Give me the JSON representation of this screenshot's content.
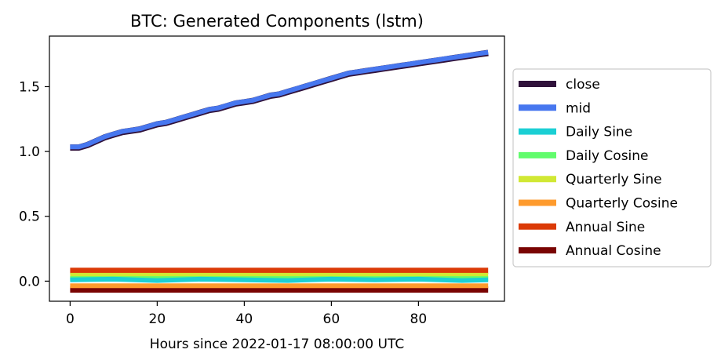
{
  "chart_data": {
    "type": "line",
    "title": "BTC: Generated Components (lstm)",
    "xlabel": "Hours since 2022-01-17 08:00:00 UTC",
    "ylabel": "",
    "xlim": [
      -4.75,
      99.75
    ],
    "ylim": [
      -0.155,
      1.89
    ],
    "xticks": [
      0,
      20,
      40,
      60,
      80
    ],
    "xtick_labels": [
      "0",
      "20",
      "40",
      "60",
      "80"
    ],
    "yticks": [
      0.0,
      0.5,
      1.0,
      1.5
    ],
    "ytick_labels": [
      "0.0",
      "0.5",
      "1.0",
      "1.5"
    ],
    "grid": false,
    "legend_position": "outside-right",
    "series": [
      {
        "name": "close",
        "color": "#30123b",
        "x": [
          0,
          2,
          4,
          6,
          8,
          10,
          12,
          14,
          16,
          18,
          20,
          22,
          24,
          26,
          28,
          30,
          32,
          34,
          36,
          38,
          40,
          42,
          44,
          46,
          48,
          50,
          52,
          54,
          56,
          58,
          60,
          62,
          64,
          66,
          68,
          70,
          72,
          74,
          76,
          78,
          80,
          82,
          84,
          86,
          88,
          90,
          92,
          94,
          96
        ],
        "values": [
          1.03,
          1.03,
          1.05,
          1.08,
          1.11,
          1.13,
          1.15,
          1.16,
          1.17,
          1.19,
          1.21,
          1.22,
          1.24,
          1.26,
          1.28,
          1.3,
          1.32,
          1.33,
          1.35,
          1.37,
          1.38,
          1.39,
          1.41,
          1.43,
          1.44,
          1.46,
          1.48,
          1.5,
          1.52,
          1.54,
          1.56,
          1.58,
          1.6,
          1.61,
          1.62,
          1.63,
          1.64,
          1.65,
          1.66,
          1.67,
          1.68,
          1.69,
          1.7,
          1.71,
          1.72,
          1.73,
          1.74,
          1.75,
          1.76
        ]
      },
      {
        "name": "mid",
        "color": "#4777ef",
        "x": [
          0,
          2,
          4,
          6,
          8,
          10,
          12,
          14,
          16,
          18,
          20,
          22,
          24,
          26,
          28,
          30,
          32,
          34,
          36,
          38,
          40,
          42,
          44,
          46,
          48,
          50,
          52,
          54,
          56,
          58,
          60,
          62,
          64,
          66,
          68,
          70,
          72,
          74,
          76,
          78,
          80,
          82,
          84,
          86,
          88,
          90,
          92,
          94,
          96
        ],
        "values": [
          1.035,
          1.035,
          1.055,
          1.085,
          1.115,
          1.135,
          1.155,
          1.165,
          1.175,
          1.195,
          1.215,
          1.225,
          1.245,
          1.265,
          1.285,
          1.305,
          1.325,
          1.335,
          1.355,
          1.375,
          1.385,
          1.395,
          1.415,
          1.435,
          1.445,
          1.465,
          1.485,
          1.505,
          1.525,
          1.545,
          1.565,
          1.585,
          1.605,
          1.615,
          1.625,
          1.635,
          1.645,
          1.655,
          1.665,
          1.675,
          1.685,
          1.695,
          1.705,
          1.715,
          1.725,
          1.735,
          1.745,
          1.755,
          1.765
        ]
      },
      {
        "name": "Daily Sine",
        "color": "#1bcfd4",
        "x": [
          0,
          10,
          20,
          30,
          40,
          50,
          60,
          70,
          80,
          90,
          96
        ],
        "values": [
          0.01,
          0.015,
          0.005,
          0.015,
          0.01,
          0.005,
          0.015,
          0.01,
          0.015,
          0.005,
          0.01
        ]
      },
      {
        "name": "Daily Cosine",
        "color": "#61fc6c",
        "x": [
          0,
          96
        ],
        "values": [
          0.02,
          0.02
        ]
      },
      {
        "name": "Quarterly Sine",
        "color": "#d1e834",
        "x": [
          0,
          96
        ],
        "values": [
          0.045,
          0.045
        ]
      },
      {
        "name": "Quarterly Cosine",
        "color": "#fe9b2d",
        "x": [
          0,
          96
        ],
        "values": [
          -0.035,
          -0.035
        ]
      },
      {
        "name": "Annual Sine",
        "color": "#db3a07",
        "x": [
          0,
          96
        ],
        "values": [
          0.08,
          0.08
        ]
      },
      {
        "name": "Annual Cosine",
        "color": "#7a0403",
        "x": [
          0,
          96
        ],
        "values": [
          -0.065,
          -0.065
        ]
      }
    ]
  }
}
